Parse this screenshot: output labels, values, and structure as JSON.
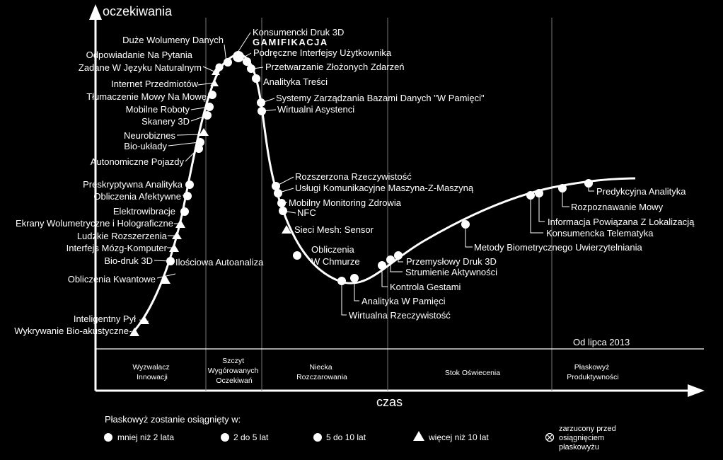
{
  "axes": {
    "y_label": "oczekiwania",
    "x_label": "czas"
  },
  "as_of": "Od lipca 2013",
  "phases": [
    {
      "lines": [
        "Wyzwalacz",
        "Innowacji"
      ]
    },
    {
      "lines": [
        "Szczyt",
        "Wygórowanych",
        "Oczekiwań"
      ]
    },
    {
      "lines": [
        "Niecka",
        "Rozczarowania"
      ]
    },
    {
      "lines": [
        "Stok Oświecenia"
      ]
    },
    {
      "lines": [
        "Płaskowyż",
        "Produktywności"
      ]
    }
  ],
  "technologies": {
    "dlugi_wolumeny": "Duże Wolumeny Danych",
    "druk3d_konsument": "Konsumencki Druk 3D",
    "gamifikacja": "GAMIFIKACJA",
    "interfejsy": "Podręczne Interfejsy Użytkownika",
    "odpowiadanie1": "Odpowiadanie Na Pytania",
    "odpowiadanie2": "Zadane W Języku Naturalnym",
    "przetwarzanie": "Przetwarzanie Złożonych Zdarzeń",
    "internet_przedmiotow": "Internet Przedmiotów",
    "analityka_tresci": "Analityka Treści",
    "tlumaczenie": "Tłumaczenie Mowy Na Mowę",
    "systemy_bd": "Systemy Zarządzania Bazami Danych \"W Pamięci\"",
    "mobilne_roboty": "Mobilne Roboty",
    "wirtualni": "Wirtualni Asystenci",
    "skanery": "Skanery 3D",
    "neurobiznes": "Neurobiznes",
    "bio_uklady": "Bio-układy",
    "autonomiczne": "Autonomiczne Pojazdy",
    "rozszerzona": "Rozszerzona Rzeczywistość",
    "preskryptywna": "Preskryptywna Analityka",
    "m2m": "Usługi Komunikacyjne Maszyna-Z-Maszyną",
    "afektywne": "Obliczenia Afektywne",
    "mobilny_monitoring": "Mobilny Monitoring Zdrowia",
    "elektrowibracje": "Elektrowibracje",
    "nfc": "NFC",
    "ekrany": "Ekrany Wolumetryczne i Holograficzne",
    "mesh": "Sieci Mesh: Sensor",
    "ludzkie": "Ludzkie Rozszerzenia",
    "interfejs_mk": "Interfejs Mózg-Komputer",
    "obliczenia_chmurze1": "Obliczenia",
    "obliczenia_chmurze2": "W Chmurze",
    "biodruk": "Bio-druk 3D",
    "ilosciowa": "Ilościowa Autoanaliza",
    "kwantowe": "Obliczenia Kwantowe",
    "inteligentny_pyl": "Inteligentny Pył",
    "bioakustyczne": "Wykrywanie Bio-akustyczne",
    "wirtualna_rz": "Wirtualna Rzeczywistość",
    "analityka_pamieci": "Analityka W Pamięci",
    "kontrola_gestami": "Kontrola Gestami",
    "strumienie": "Strumienie Aktywności",
    "przemyslowy_druk": "Przemysłowy Druk 3D",
    "biometryczne": "Metody Biometrycznego Uwierzytelniania",
    "telematyka": "Konsumencka Telematyka",
    "lokalizacja": "Informacja Powiązana Z Lokalizacją",
    "rozpoznawanie_mowy": "Rozpoznawanie Mowy",
    "predykcyjna": "Predykcyjna Analityka"
  },
  "legend": {
    "title": "Płaskowyż zostanie osiągnięty w:",
    "items": [
      {
        "marker": "circle-white-icon",
        "label": "mniej niż 2 lata"
      },
      {
        "marker": "circle-white-icon",
        "label": "2 do 5 lat"
      },
      {
        "marker": "circle-white-icon",
        "label": "5 do 10 lat"
      },
      {
        "marker": "triangle-white-icon",
        "label": "więcej niż 10 lat"
      }
    ],
    "obsolete_lines": [
      "zarzucony przed",
      "osiągnięciem",
      "płaskowyżu"
    ]
  },
  "colors": {
    "background": "#000000",
    "foreground": "#ffffff",
    "divider": "#777777"
  }
}
